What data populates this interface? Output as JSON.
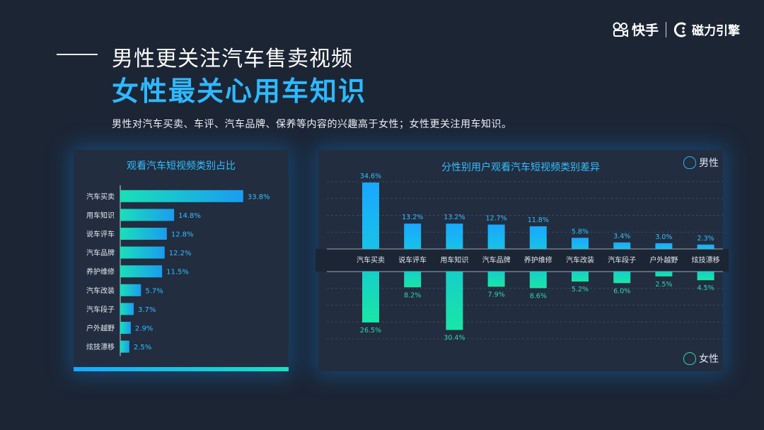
{
  "brand": {
    "kuaishou_label": "快手",
    "engine_label": "磁力引擎"
  },
  "header": {
    "title_line1": "男性更关注汽车售卖视频",
    "title_line2": "女性最关心用车知识",
    "subtitle": "男性对汽车买卖、车评、汽车品牌、保养等内容的兴趣高于女性；女性更关注用车知识。"
  },
  "colors": {
    "accent": "#2fb8ff",
    "bar_blue": "#1a9cf0",
    "bar_green": "#19e0b8",
    "label": "#33bfff"
  },
  "chart_data": [
    {
      "type": "bar",
      "orientation": "horizontal",
      "title": "观看汽车短视频类别占比",
      "categories": [
        "汽车买卖",
        "用车知识",
        "说车评车",
        "汽车品牌",
        "养护维修",
        "汽车改装",
        "汽车段子",
        "户外越野",
        "炫技漂移"
      ],
      "values": [
        33.8,
        14.8,
        12.8,
        12.2,
        11.5,
        5.7,
        3.7,
        2.9,
        2.5
      ],
      "value_labels": [
        "33.8%",
        "14.8%",
        "12.8%",
        "12.2%",
        "11.5%",
        "5.7%",
        "3.7%",
        "2.9%",
        "2.5%"
      ],
      "xlim": [
        0,
        35
      ]
    },
    {
      "type": "bar",
      "orientation": "diverging",
      "title": "分性别用户观看汽车短视频类别差异",
      "categories": [
        "汽车买卖",
        "说车评车",
        "用车知识",
        "汽车品牌",
        "养护维修",
        "汽车改装",
        "汽车段子",
        "户外越野",
        "炫技漂移"
      ],
      "series": [
        {
          "name": "男性",
          "values": [
            34.6,
            13.2,
            13.2,
            12.7,
            11.8,
            5.8,
            3.4,
            3.0,
            2.3
          ],
          "value_labels": [
            "34.6%",
            "13.2%",
            "13.2%",
            "12.7%",
            "11.8%",
            "5.8%",
            "3.4%",
            "3.0%",
            "2.3%"
          ]
        },
        {
          "name": "女性",
          "values": [
            26.5,
            8.2,
            30.4,
            7.9,
            8.6,
            5.2,
            6.0,
            2.5,
            4.5
          ],
          "value_labels": [
            "26.5%",
            "8.2%",
            "30.4%",
            "7.9%",
            "8.6%",
            "5.2%",
            "6.0%",
            "2.5%",
            "4.5%"
          ]
        }
      ],
      "ylim": [
        0,
        35
      ],
      "grid": true
    }
  ]
}
